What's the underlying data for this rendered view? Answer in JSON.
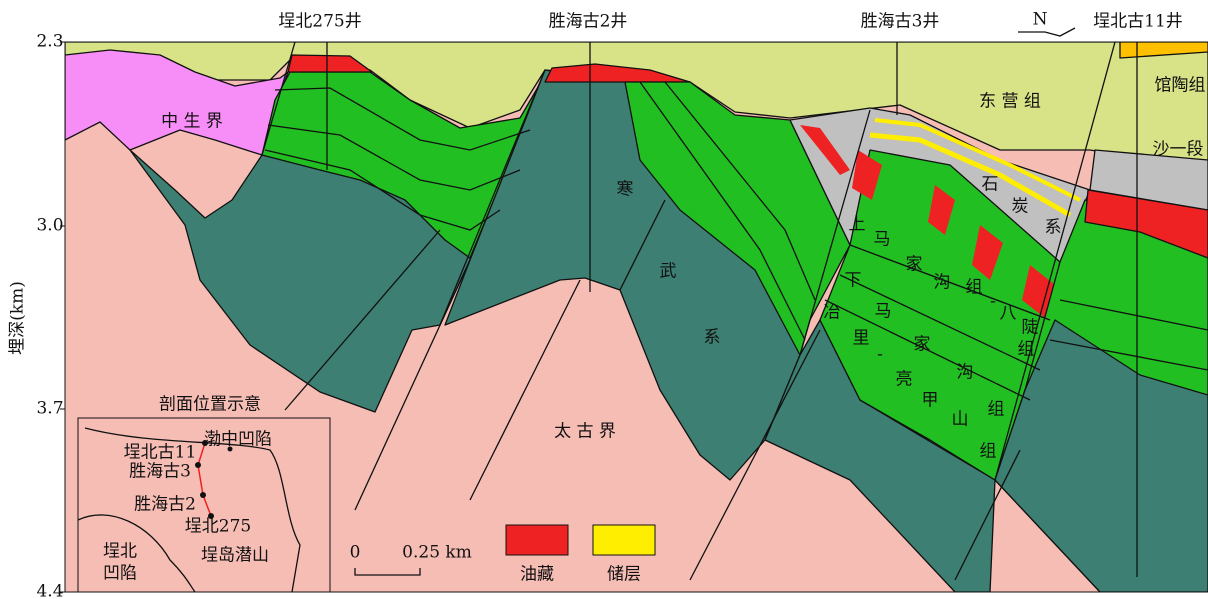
{
  "axis": {
    "label": "埋深(km)",
    "ticks": [
      "2.3",
      "3.0",
      "3.7",
      "4.4"
    ]
  },
  "wells": [
    "埕北275井",
    "胜海古2井",
    "胜海古3井",
    "埕北古11井"
  ],
  "north": "N",
  "units": {
    "mesozoic": "中 生 界",
    "dongying": "东 营 组",
    "guantao": "馆陶组",
    "shayi": "沙一段",
    "archean": "太 古 界"
  },
  "vertical_labels": {
    "cambrian": [
      "寒",
      "武",
      "系"
    ],
    "carboniferous": [
      "石",
      "炭",
      "系"
    ],
    "upper_majiagou": [
      "上",
      "马",
      "家",
      "沟",
      "组",
      "-",
      "八",
      "陡",
      "组"
    ],
    "lower_majiagou": [
      "下",
      "马",
      "家",
      "沟",
      "组"
    ],
    "yeli": [
      "冶",
      "里",
      "-",
      "亮",
      "甲",
      "山",
      "组"
    ]
  },
  "inset": {
    "title": "剖面位置示意",
    "labels": [
      "埕北古11",
      "胜海古3",
      "胜海古2",
      "埕北275",
      "渤中凹陷",
      "埕北",
      "凹陷",
      "埕岛潜山"
    ]
  },
  "legend": [
    "油藏",
    "储层"
  ],
  "scale": [
    "0",
    "0.25 km"
  ]
}
